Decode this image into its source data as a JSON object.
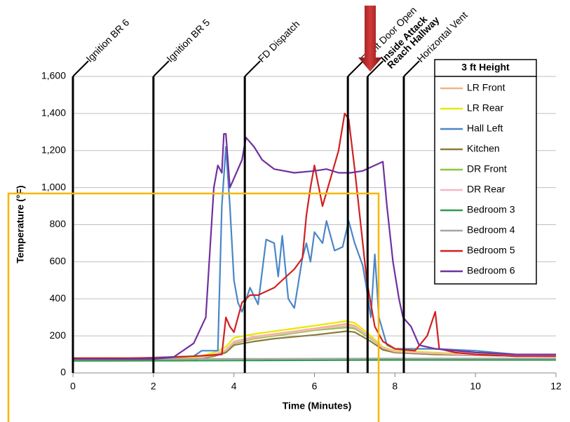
{
  "chart_data": {
    "type": "line",
    "x_label": "Time (Minutes)",
    "y_label": "Temperature (°F)",
    "xlim": [
      0,
      12
    ],
    "xticks": [
      0,
      2,
      4,
      6,
      8,
      10,
      12
    ],
    "ylim": [
      0,
      1600
    ],
    "yticks": [
      0,
      200,
      400,
      600,
      800,
      {
        "value": 1000,
        "label": "1,000"
      },
      {
        "value": 1200,
        "label": "1,200"
      },
      {
        "value": 1400,
        "label": "1,400"
      },
      {
        "value": 1600,
        "label": "1,600"
      }
    ],
    "grid": true,
    "legend_title": "3 ft Height",
    "legend_position": "upper right",
    "events": [
      {
        "x": 0,
        "lines": [
          "Ignition BR 6"
        ],
        "color": "#000000"
      },
      {
        "x": 2,
        "lines": [
          "Ignition BR 5"
        ],
        "color": "#000000"
      },
      {
        "x": 4.27,
        "lines": [
          "FD Dispatch"
        ],
        "color": "#000000"
      },
      {
        "x": 6.83,
        "lines": [
          "Front Door Open"
        ],
        "color": "#000000"
      },
      {
        "x": 7.32,
        "lines": [
          "Inside Attack",
          "Reach Hallway"
        ],
        "color": "#e02020"
      },
      {
        "x": 8.22,
        "lines": [
          "Horizontal Vent"
        ],
        "color": "#000000"
      }
    ],
    "series": [
      {
        "name": "LR Front",
        "color": "#f4b183",
        "x": [
          0,
          3,
          3.5,
          3.8,
          4,
          4.5,
          5,
          6,
          6.8,
          7,
          7.4,
          7.7,
          8,
          9,
          10,
          12
        ],
        "values": [
          70,
          75,
          100,
          125,
          170,
          195,
          210,
          240,
          265,
          255,
          190,
          130,
          110,
          100,
          95,
          90
        ]
      },
      {
        "name": "LR Rear",
        "color": "#e8e800",
        "x": [
          0,
          3,
          3.5,
          3.8,
          4,
          4.5,
          5,
          6,
          6.8,
          7,
          7.4,
          7.7,
          8,
          9,
          10,
          12
        ],
        "values": [
          70,
          80,
          110,
          140,
          190,
          210,
          225,
          255,
          280,
          270,
          200,
          140,
          120,
          110,
          100,
          95
        ]
      },
      {
        "name": "Hall Left",
        "color": "#4a86c8",
        "x": [
          0,
          3,
          3.2,
          3.6,
          3.7,
          3.8,
          3.9,
          4,
          4.1,
          4.2,
          4.4,
          4.6,
          4.8,
          5,
          5.1,
          5.2,
          5.35,
          5.5,
          5.7,
          5.8,
          5.9,
          6,
          6.2,
          6.3,
          6.5,
          6.7,
          6.85,
          7,
          7.2,
          7.3,
          7.4,
          7.5,
          7.6,
          7.8,
          8,
          9,
          10,
          11,
          12
        ],
        "values": [
          70,
          90,
          120,
          120,
          900,
          1220,
          900,
          500,
          380,
          330,
          460,
          370,
          720,
          700,
          520,
          740,
          400,
          350,
          620,
          700,
          600,
          760,
          700,
          820,
          660,
          680,
          820,
          700,
          580,
          450,
          300,
          640,
          300,
          150,
          130,
          130,
          120,
          100,
          95
        ]
      },
      {
        "name": "Kitchen",
        "color": "#8c7a3c",
        "x": [
          0,
          3,
          3.5,
          3.8,
          4,
          4.5,
          5,
          6,
          6.8,
          7,
          7.4,
          7.7,
          8,
          9,
          10,
          12
        ],
        "values": [
          70,
          72,
          90,
          110,
          150,
          170,
          185,
          205,
          225,
          220,
          170,
          125,
          110,
          100,
          95,
          90
        ]
      },
      {
        "name": "DR Front",
        "color": "#8cc43c",
        "x": [
          0,
          3,
          3.5,
          3.8,
          4,
          4.5,
          5,
          6,
          6.8,
          7,
          7.4,
          7.7,
          8,
          9,
          10,
          12
        ],
        "values": [
          70,
          74,
          95,
          120,
          160,
          185,
          200,
          230,
          245,
          240,
          185,
          135,
          115,
          105,
          98,
          92
        ]
      },
      {
        "name": "DR Rear",
        "color": "#f4b6c2",
        "x": [
          0,
          3,
          3.5,
          3.8,
          4,
          4.5,
          5,
          6,
          6.8,
          7,
          7.4,
          7.7,
          8,
          9,
          10,
          12
        ],
        "values": [
          70,
          74,
          98,
          122,
          165,
          190,
          205,
          235,
          255,
          248,
          190,
          135,
          115,
          105,
          97,
          92
        ]
      },
      {
        "name": "Bedroom 3",
        "color": "#2e9a4e",
        "x": [
          0,
          4,
          8,
          12
        ],
        "values": [
          65,
          67,
          70,
          70
        ]
      },
      {
        "name": "Bedroom 4",
        "color": "#a6a6a6",
        "x": [
          0,
          4,
          8,
          12
        ],
        "values": [
          75,
          76,
          78,
          78
        ]
      },
      {
        "name": "Bedroom 5",
        "color": "#d02020",
        "x": [
          0,
          2,
          3,
          3.7,
          3.8,
          3.9,
          4,
          4.2,
          4.4,
          4.6,
          5,
          5.3,
          5.5,
          5.7,
          5.8,
          5.9,
          6,
          6.2,
          6.4,
          6.6,
          6.75,
          6.85,
          7,
          7.2,
          7.3,
          7.5,
          7.7,
          8,
          8.5,
          8.8,
          9,
          9.1,
          9.5,
          10,
          11,
          12
        ],
        "values": [
          80,
          80,
          90,
          100,
          300,
          250,
          220,
          380,
          420,
          420,
          460,
          520,
          560,
          620,
          850,
          1000,
          1120,
          900,
          1050,
          1200,
          1400,
          1370,
          1100,
          700,
          500,
          250,
          170,
          130,
          120,
          200,
          330,
          130,
          110,
          100,
          90,
          90
        ]
      },
      {
        "name": "Bedroom 6",
        "color": "#7030a0",
        "x": [
          0,
          2,
          2.5,
          3,
          3.3,
          3.5,
          3.6,
          3.7,
          3.75,
          3.8,
          3.9,
          4,
          4.2,
          4.3,
          4.5,
          4.7,
          5,
          5.5,
          6,
          6.3,
          6.6,
          6.9,
          7.2,
          7.5,
          7.7,
          7.8,
          7.95,
          8.1,
          8.2,
          8.4,
          8.6,
          9,
          10,
          11,
          12
        ],
        "values": [
          75,
          75,
          85,
          160,
          300,
          1000,
          1120,
          1080,
          1290,
          1290,
          1000,
          1050,
          1150,
          1270,
          1220,
          1150,
          1100,
          1080,
          1090,
          1100,
          1080,
          1080,
          1090,
          1120,
          1140,
          900,
          600,
          400,
          300,
          250,
          150,
          130,
          110,
          100,
          100
        ]
      }
    ]
  }
}
